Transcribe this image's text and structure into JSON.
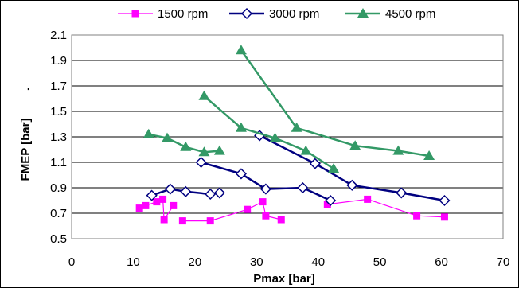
{
  "chart_data": {
    "type": "line",
    "title": "",
    "xlabel": "Pmax [bar]",
    "ylabel": "FMEP [bar]",
    "ylabel_suffix": ".",
    "xlim": [
      0,
      70
    ],
    "ylim": [
      0.5,
      2.1
    ],
    "xticks": [
      "0",
      "10",
      "20",
      "30",
      "40",
      "50",
      "60",
      "70"
    ],
    "yticks": [
      "0.5",
      "0.7",
      "0.9",
      "1.1",
      "1.3",
      "1.5",
      "1.7",
      "1.9",
      "2.1"
    ],
    "grid": "horizontal",
    "legend_position": "top",
    "series": [
      {
        "name": "1500 rpm",
        "color": "#ff00ff",
        "marker": "square",
        "segments": [
          [
            [
              11,
              0.74
            ],
            [
              12,
              0.76
            ],
            [
              13.8,
              0.79
            ],
            [
              14.8,
              0.81
            ],
            [
              15,
              0.65
            ],
            [
              16.5,
              0.76
            ]
          ],
          [
            [
              18,
              0.64
            ],
            [
              22.5,
              0.64
            ],
            [
              28.5,
              0.73
            ],
            [
              31,
              0.79
            ],
            [
              31.5,
              0.68
            ],
            [
              34,
              0.65
            ]
          ],
          [
            [
              41.5,
              0.77
            ],
            [
              48,
              0.81
            ],
            [
              56,
              0.68
            ],
            [
              60.5,
              0.67
            ]
          ]
        ]
      },
      {
        "name": "3000 rpm",
        "color": "#000080",
        "marker": "diamond",
        "segments": [
          [
            [
              13,
              0.84
            ],
            [
              16,
              0.89
            ],
            [
              18.5,
              0.87
            ],
            [
              22.5,
              0.85
            ],
            [
              24,
              0.86
            ]
          ],
          [
            [
              21,
              1.1
            ],
            [
              27.5,
              1.01
            ],
            [
              31.5,
              0.89
            ],
            [
              37.5,
              0.9
            ],
            [
              42,
              0.8
            ]
          ],
          [
            [
              30.5,
              1.31
            ],
            [
              39.5,
              1.09
            ],
            [
              45.5,
              0.92
            ],
            [
              53.5,
              0.86
            ],
            [
              60.5,
              0.8
            ]
          ]
        ]
      },
      {
        "name": "4500 rpm",
        "color": "#339966",
        "marker": "triangle",
        "segments": [
          [
            [
              12.5,
              1.32
            ],
            [
              15.5,
              1.29
            ],
            [
              18.5,
              1.22
            ],
            [
              21.5,
              1.18
            ],
            [
              24,
              1.19
            ]
          ],
          [
            [
              21.5,
              1.62
            ],
            [
              27.5,
              1.37
            ],
            [
              33,
              1.29
            ],
            [
              38,
              1.19
            ],
            [
              42.5,
              1.05
            ]
          ],
          [
            [
              27.5,
              1.98
            ],
            [
              36.5,
              1.37
            ],
            [
              46,
              1.23
            ],
            [
              53,
              1.19
            ],
            [
              58,
              1.15
            ]
          ]
        ]
      }
    ]
  }
}
